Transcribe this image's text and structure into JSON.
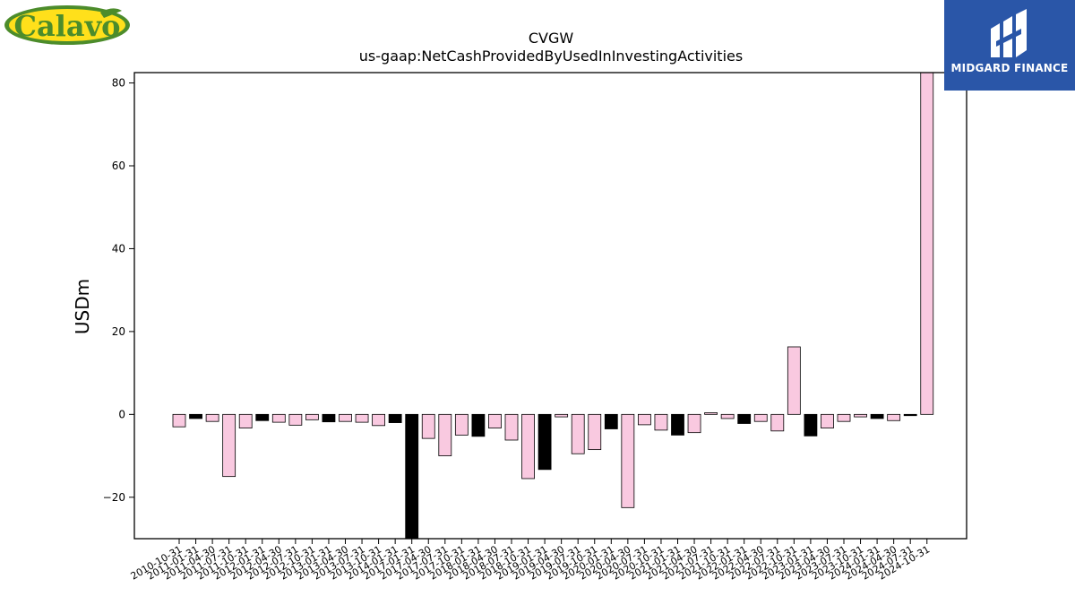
{
  "logos": {
    "left_brand": "Calavo",
    "right_brand": "MIDGARD FINANCE"
  },
  "colors": {
    "positive_bar": "#f9c9e0",
    "negative_bar_alt": "#000000",
    "midgard_blue": "#2a56a8",
    "calavo_yellow": "#ffe01b",
    "calavo_green": "#4c8c2b"
  },
  "chart_data": {
    "type": "bar",
    "title": "CVGW",
    "subtitle": "us-gaap:NetCashProvidedByUsedInInvestingActivities",
    "xlabel": "",
    "ylabel": "USDm",
    "ylim": [
      -30,
      82.5
    ],
    "yticks": [
      -20,
      0,
      20,
      40,
      60,
      80
    ],
    "ytick_labels": [
      "−20",
      "0",
      "20",
      "40",
      "60",
      "80"
    ],
    "grid": false,
    "categories": [
      "2010-10-31",
      "2011-01-31",
      "2011-04-30",
      "2011-07-31",
      "2011-10-31",
      "2012-01-31",
      "2012-04-30",
      "2012-07-31",
      "2012-10-31",
      "2013-01-31",
      "2013-04-30",
      "2013-07-31",
      "2013-10-31",
      "2014-01-31",
      "2017-01-31",
      "2017-04-30",
      "2017-07-31",
      "2017-10-31",
      "2018-01-31",
      "2018-04-30",
      "2018-07-31",
      "2018-10-31",
      "2019-01-31",
      "2019-04-30",
      "2019-07-31",
      "2019-10-31",
      "2020-01-31",
      "2020-04-30",
      "2020-07-31",
      "2020-10-31",
      "2021-01-31",
      "2021-04-30",
      "2021-07-31",
      "2021-10-31",
      "2022-01-31",
      "2022-04-30",
      "2022-07-31",
      "2022-10-31",
      "2023-01-31",
      "2023-04-30",
      "2023-07-31",
      "2023-10-31",
      "2024-01-31",
      "2024-04-30",
      "2024-07-31",
      "2024-10-31"
    ],
    "values": [
      -3.0,
      -1.0,
      -1.7,
      -15.0,
      -3.3,
      -1.5,
      -1.9,
      -2.6,
      -1.3,
      -1.8,
      -1.7,
      -1.9,
      -2.7,
      -2.0,
      -30.0,
      -5.8,
      -10.0,
      -5.0,
      -5.3,
      -3.3,
      -6.2,
      -15.5,
      -13.3,
      -0.6,
      -9.5,
      -8.5,
      -3.5,
      -22.5,
      -2.5,
      -3.8,
      -5.0,
      -4.4,
      0.4,
      -1.0,
      -2.2,
      -1.7,
      -4.0,
      16.3,
      -5.2,
      -3.3,
      -1.7,
      -0.6,
      -1.0,
      -1.5,
      -0.3,
      82.5
    ],
    "bar_colors": [
      "#f9c9e0",
      "#000000",
      "#f9c9e0",
      "#f9c9e0",
      "#f9c9e0",
      "#000000",
      "#f9c9e0",
      "#f9c9e0",
      "#f9c9e0",
      "#000000",
      "#f9c9e0",
      "#f9c9e0",
      "#f9c9e0",
      "#000000",
      "#000000",
      "#f9c9e0",
      "#f9c9e0",
      "#f9c9e0",
      "#000000",
      "#f9c9e0",
      "#f9c9e0",
      "#f9c9e0",
      "#000000",
      "#f9c9e0",
      "#f9c9e0",
      "#f9c9e0",
      "#000000",
      "#f9c9e0",
      "#f9c9e0",
      "#f9c9e0",
      "#000000",
      "#f9c9e0",
      "#f9c9e0",
      "#f9c9e0",
      "#000000",
      "#f9c9e0",
      "#f9c9e0",
      "#f9c9e0",
      "#000000",
      "#f9c9e0",
      "#f9c9e0",
      "#f9c9e0",
      "#000000",
      "#f9c9e0",
      "#000000",
      "#f9c9e0"
    ]
  }
}
